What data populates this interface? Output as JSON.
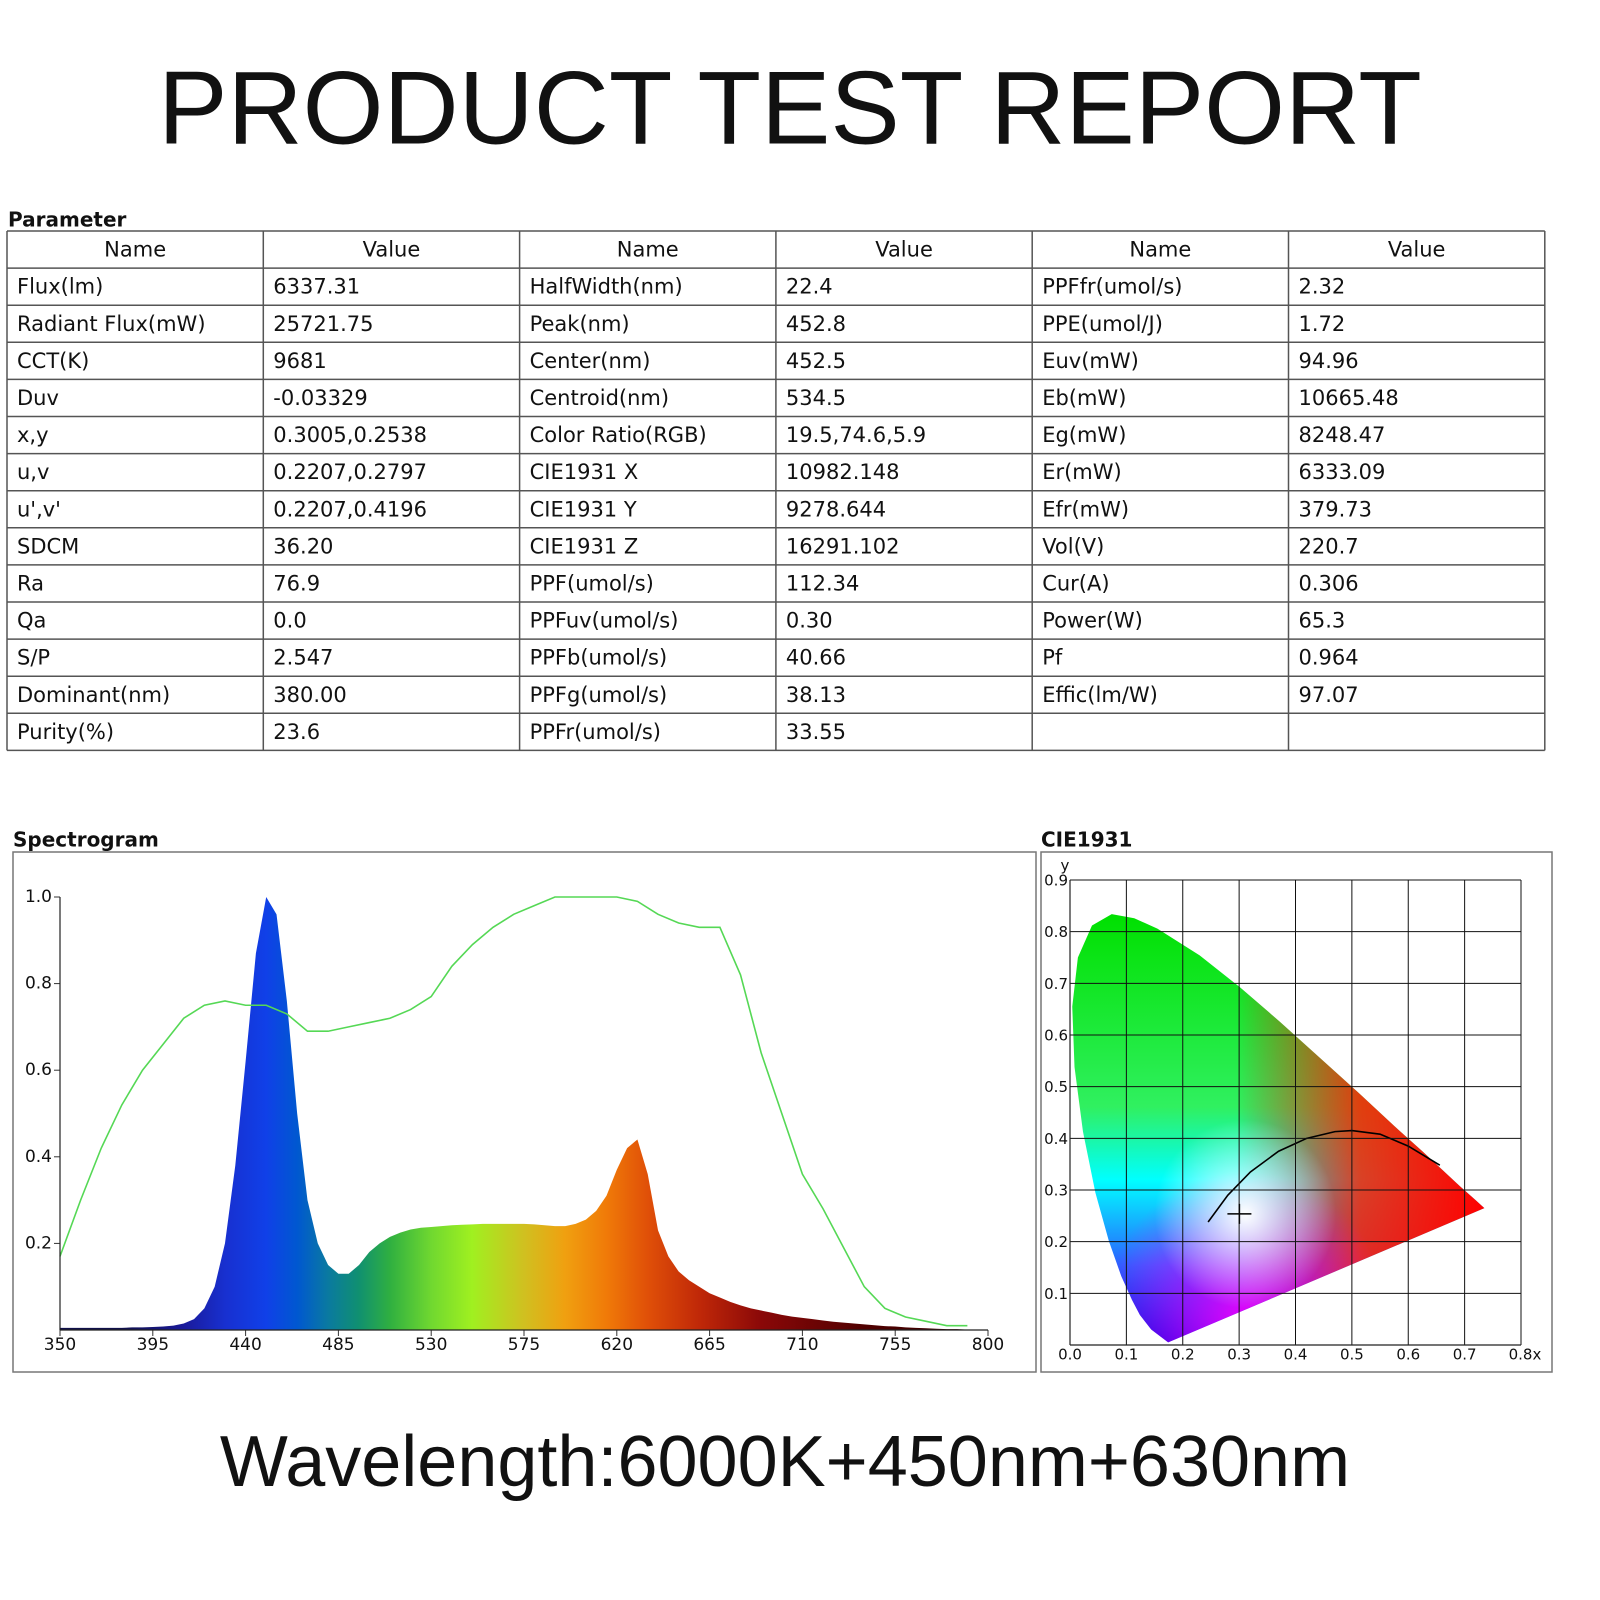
{
  "title": "PRODUCT TEST REPORT",
  "table": {
    "caption": "Parameter",
    "header": [
      "Name",
      "Value",
      "Name",
      "Value",
      "Name",
      "Value"
    ],
    "rows": [
      [
        "Flux(lm)",
        "6337.31",
        "HalfWidth(nm)",
        "22.4",
        "PPFfr(umol/s)",
        "2.32"
      ],
      [
        "Radiant Flux(mW)",
        "25721.75",
        "Peak(nm)",
        "452.8",
        "PPE(umol/J)",
        "1.72"
      ],
      [
        "CCT(K)",
        "9681",
        "Center(nm)",
        "452.5",
        "Euv(mW)",
        "94.96"
      ],
      [
        "Duv",
        "-0.03329",
        "Centroid(nm)",
        "534.5",
        "Eb(mW)",
        "10665.48"
      ],
      [
        "x,y",
        "0.3005,0.2538",
        "Color Ratio(RGB)",
        "19.5,74.6,5.9",
        "Eg(mW)",
        "8248.47"
      ],
      [
        "u,v",
        "0.2207,0.2797",
        "CIE1931 X",
        "10982.148",
        "Er(mW)",
        "6333.09"
      ],
      [
        "u',v'",
        "0.2207,0.4196",
        "CIE1931 Y",
        "9278.644",
        "Efr(mW)",
        "379.73"
      ],
      [
        "SDCM",
        "36.20",
        "CIE1931 Z",
        "16291.102",
        "Vol(V)",
        "220.7"
      ],
      [
        "Ra",
        "76.9",
        "PPF(umol/s)",
        "112.34",
        "Cur(A)",
        "0.306"
      ],
      [
        "Qa",
        "0.0",
        "PPFuv(umol/s)",
        "0.30",
        "Power(W)",
        "65.3"
      ],
      [
        "S/P",
        "2.547",
        "PPFb(umol/s)",
        "40.66",
        "Pf",
        "0.964"
      ],
      [
        "Dominant(nm)",
        "380.00",
        "PPFg(umol/s)",
        "38.13",
        "Effic(lm/W)",
        "97.07"
      ],
      [
        "Purity(%)",
        "23.6",
        "PPFr(umol/s)",
        "33.55",
        null,
        null
      ]
    ]
  },
  "chart_data": [
    {
      "type": "line",
      "title": "Spectrogram",
      "xlim": [
        350,
        800
      ],
      "xticks": [
        350,
        395,
        440,
        485,
        530,
        575,
        620,
        665,
        710,
        755,
        800
      ],
      "ylim": [
        0,
        1
      ],
      "yticks": [
        0.2,
        0.4,
        0.6,
        0.8,
        {
          "value": 1,
          "label": "1.0"
        }
      ],
      "grid": false,
      "series": [
        {
          "area": true,
          "x": [
            350,
            355,
            360,
            365,
            370,
            375,
            380,
            385,
            390,
            395,
            400,
            405,
            410,
            415,
            420,
            425,
            430,
            435,
            440,
            445,
            450,
            455,
            460,
            465,
            470,
            475,
            480,
            485,
            490,
            495,
            500,
            505,
            510,
            515,
            520,
            525,
            530,
            535,
            540,
            545,
            550,
            555,
            560,
            565,
            570,
            575,
            580,
            585,
            590,
            595,
            600,
            605,
            610,
            615,
            620,
            625,
            630,
            635,
            640,
            645,
            650,
            655,
            660,
            665,
            670,
            675,
            680,
            685,
            690,
            695,
            700,
            705,
            710,
            715,
            720,
            725,
            730,
            735,
            740,
            745,
            750,
            755,
            760,
            765,
            770,
            775,
            780,
            785,
            790,
            795,
            800
          ],
          "values": [
            0.005,
            0.005,
            0.005,
            0.005,
            0.005,
            0.005,
            0.005,
            0.006,
            0.006,
            0.007,
            0.008,
            0.01,
            0.015,
            0.025,
            0.05,
            0.1,
            0.2,
            0.38,
            0.62,
            0.87,
            1.0,
            0.96,
            0.76,
            0.5,
            0.3,
            0.2,
            0.15,
            0.13,
            0.13,
            0.15,
            0.18,
            0.2,
            0.215,
            0.225,
            0.232,
            0.236,
            0.238,
            0.24,
            0.242,
            0.243,
            0.244,
            0.245,
            0.245,
            0.245,
            0.245,
            0.245,
            0.244,
            0.242,
            0.24,
            0.24,
            0.245,
            0.255,
            0.275,
            0.31,
            0.37,
            0.42,
            0.44,
            0.36,
            0.23,
            0.17,
            0.135,
            0.115,
            0.1,
            0.085,
            0.075,
            0.065,
            0.057,
            0.05,
            0.045,
            0.04,
            0.035,
            0.031,
            0.028,
            0.025,
            0.022,
            0.019,
            0.017,
            0.015,
            0.013,
            0.011,
            0.009,
            0.008,
            0.006,
            0.005,
            0.004,
            0.003,
            0.002,
            0.002,
            0.001,
            0.001,
            0.001
          ]
        },
        {
          "color": "#55d855",
          "x": [
            350,
            360,
            370,
            380,
            390,
            400,
            410,
            420,
            430,
            440,
            450,
            460,
            470,
            480,
            490,
            500,
            510,
            520,
            530,
            540,
            550,
            560,
            570,
            580,
            590,
            600,
            610,
            620,
            630,
            640,
            650,
            660,
            670,
            680,
            690,
            700,
            710,
            720,
            730,
            740,
            750,
            760,
            770,
            780,
            790
          ],
          "values": [
            0.17,
            0.3,
            0.42,
            0.52,
            0.6,
            0.66,
            0.72,
            0.75,
            0.76,
            0.75,
            0.75,
            0.73,
            0.69,
            0.69,
            0.7,
            0.71,
            0.72,
            0.74,
            0.77,
            0.84,
            0.89,
            0.93,
            0.96,
            0.98,
            1.0,
            1.0,
            1.0,
            1.0,
            0.99,
            0.96,
            0.94,
            0.93,
            0.93,
            0.82,
            0.64,
            0.5,
            0.36,
            0.28,
            0.19,
            0.1,
            0.05,
            0.03,
            0.02,
            0.01,
            0.01
          ]
        }
      ]
    },
    {
      "type": "chromaticity",
      "title": "CIE1931",
      "ylabel": "y",
      "xlim": [
        0,
        0.8
      ],
      "xticks": [
        {
          "value": 0,
          "label": "0.0"
        },
        0.1,
        0.2,
        0.3,
        0.4,
        0.5,
        0.6,
        0.7,
        {
          "value": 0.8,
          "label": "0.8x"
        }
      ],
      "ylim": [
        0,
        0.9
      ],
      "yticks": [
        0.1,
        0.2,
        0.3,
        0.4,
        0.5,
        0.6,
        0.7,
        0.8,
        0.9
      ],
      "grid": true,
      "series": [
        {
          "fill": true,
          "x": [
            0.1741,
            0.144,
            0.124,
            0.11,
            0.091,
            0.069,
            0.045,
            0.023,
            0.008,
            0.004,
            0.014,
            0.039,
            0.074,
            0.114,
            0.155,
            0.23,
            0.302,
            0.373,
            0.444,
            0.513,
            0.575,
            0.627,
            0.691,
            0.719,
            0.735
          ],
          "values": [
            0.005,
            0.03,
            0.058,
            0.087,
            0.133,
            0.201,
            0.295,
            0.413,
            0.538,
            0.655,
            0.75,
            0.812,
            0.834,
            0.826,
            0.806,
            0.754,
            0.692,
            0.625,
            0.555,
            0.487,
            0.424,
            0.373,
            0.308,
            0.281,
            0.265
          ]
        },
        {
          "color": "#000000",
          "x": [
            0.245,
            0.28,
            0.32,
            0.37,
            0.42,
            0.47,
            0.5,
            0.55,
            0.6,
            0.656
          ],
          "values": [
            0.238,
            0.29,
            0.335,
            0.375,
            0.4,
            0.413,
            0.415,
            0.408,
            0.385,
            0.348
          ]
        },
        {
          "color": "#000000",
          "marker": "cross",
          "x": [
            0.3005
          ],
          "values": [
            0.2538
          ]
        }
      ]
    }
  ],
  "footer": "Wavelength:6000K+450nm+630nm"
}
